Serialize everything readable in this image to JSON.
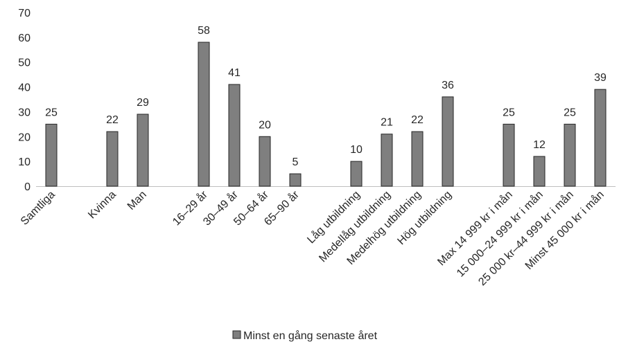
{
  "chart_data": {
    "type": "bar",
    "title": "",
    "xlabel": "",
    "ylabel": "",
    "ylim": [
      0,
      70
    ],
    "yticks": [
      0,
      10,
      20,
      30,
      40,
      50,
      60,
      70
    ],
    "grid": false,
    "legend_position": "bottom",
    "bar_color": "#7f7f7f",
    "bar_edge_color": "#262626",
    "categories": [
      "Samtliga",
      "",
      "Kvinna",
      "Man",
      "",
      "16–29 år",
      "30–49 år",
      "50–64 år",
      "65–90 år",
      "",
      "Låg utbildning",
      "Medellåg utbildning",
      "Medelhög utbildning",
      "Hög utbildning",
      "",
      "Max 14 999 kr i mån",
      "15 000–24 999 kr i mån",
      "25 000 kr–44 999 kr i mån",
      "Minst 45 000 kr i mån"
    ],
    "series": [
      {
        "name": "Minst en gång senaste året",
        "values": [
          25,
          null,
          22,
          29,
          null,
          58,
          41,
          20,
          5,
          null,
          10,
          21,
          22,
          36,
          null,
          25,
          12,
          25,
          39
        ]
      }
    ]
  }
}
